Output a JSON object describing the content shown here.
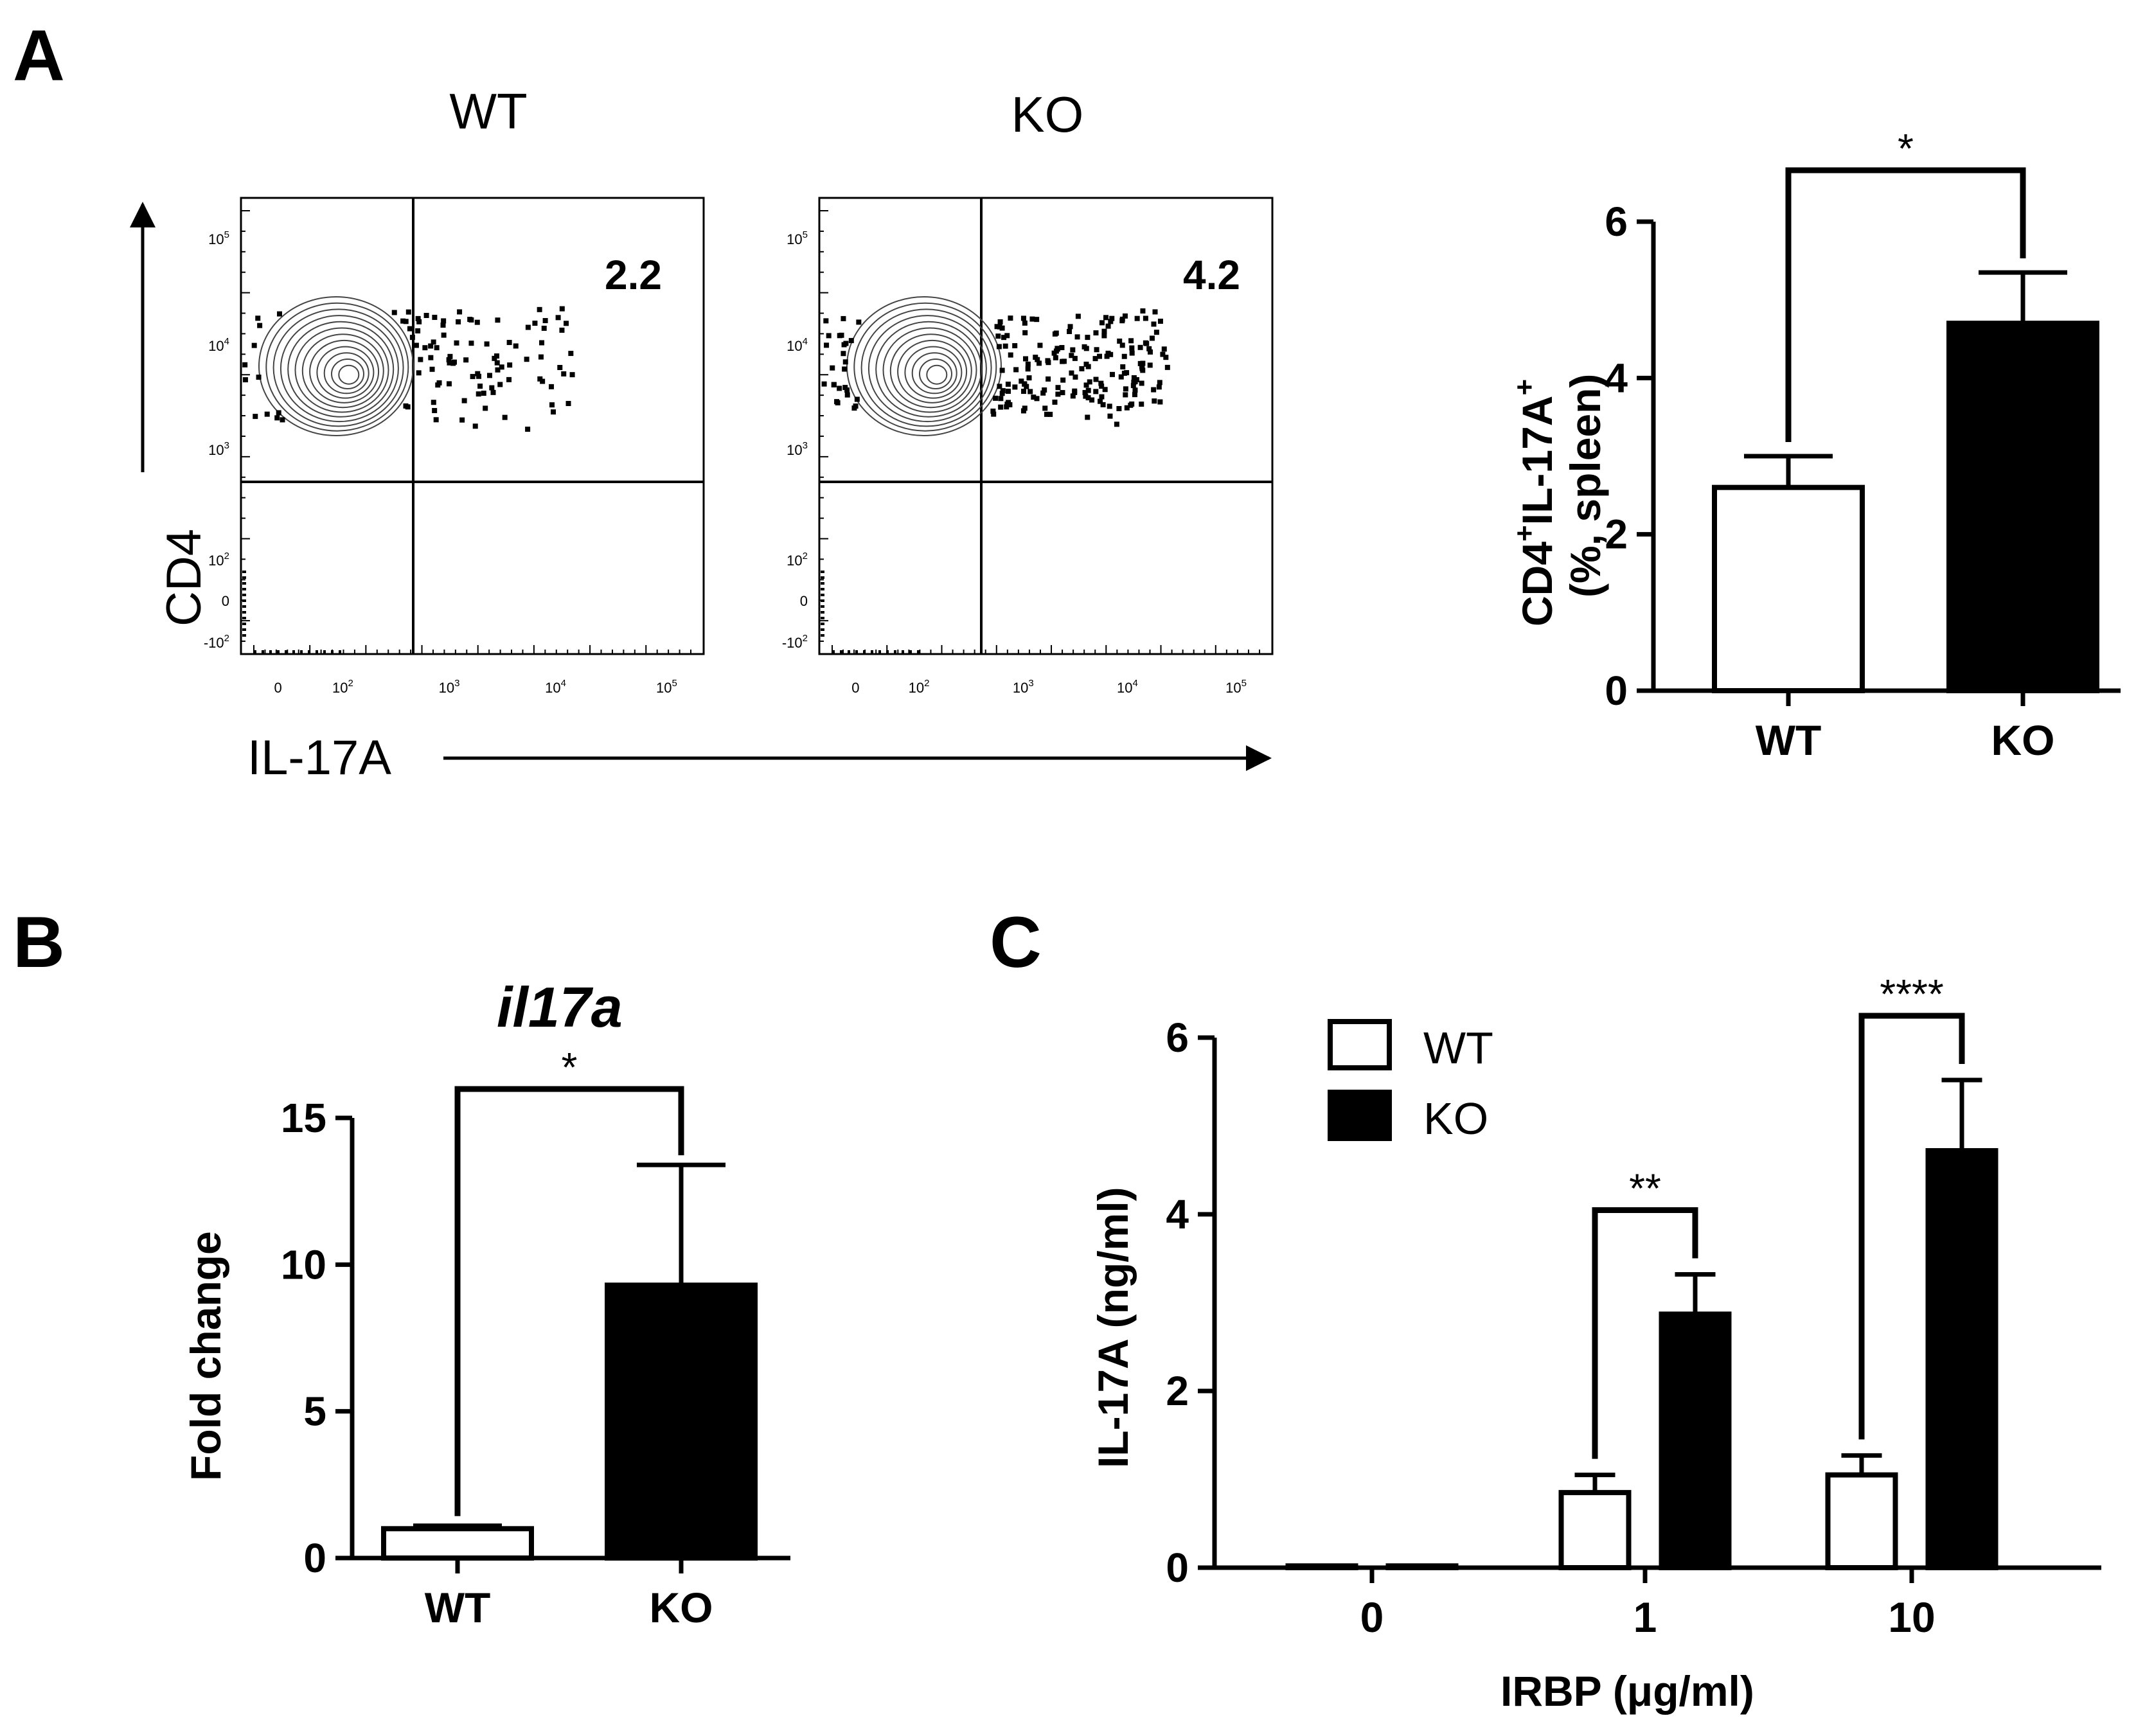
{
  "panel_labels": {
    "a": "A",
    "b": "B",
    "c": "C"
  },
  "colors": {
    "wt_fill": "#ffffff",
    "ko_fill": "#000000",
    "axis": "#000000"
  },
  "chart_data": [
    {
      "id": "A-flow",
      "type": "scatter",
      "description_kind": "flow cytometry contour plots",
      "panels": [
        {
          "title": "WT",
          "quadrant_percent": "2.2"
        },
        {
          "title": "KO",
          "quadrant_percent": "4.2"
        }
      ],
      "xlabel": "IL-17A",
      "ylabel": "CD4",
      "x_ticks": [
        {
          "base": "0",
          "exp": ""
        },
        {
          "base": "10",
          "exp": "2"
        },
        {
          "base": "10",
          "exp": "3"
        },
        {
          "base": "10",
          "exp": "4"
        },
        {
          "base": "10",
          "exp": "5"
        }
      ],
      "y_ticks": [
        {
          "base": "10",
          "exp": "5"
        },
        {
          "base": "10",
          "exp": "4"
        },
        {
          "base": "10",
          "exp": "3"
        },
        {
          "base": "10",
          "exp": "2"
        },
        {
          "base": "0",
          "exp": ""
        },
        {
          "base": "-10",
          "exp": "2"
        }
      ]
    },
    {
      "id": "A-bar",
      "type": "bar",
      "categories": [
        "WT",
        "KO"
      ],
      "values": [
        2.6,
        4.7
      ],
      "errors": [
        0.4,
        0.65
      ],
      "ylabel_line1": "CD4",
      "ylabel_sup1": "+",
      "ylabel_mid": "IL-17A",
      "ylabel_sup2": "+",
      "ylabel_line2": "(%, spleen)",
      "ylim": [
        0,
        6
      ],
      "yticks": [
        "0",
        "2",
        "4",
        "6"
      ],
      "significance": "*"
    },
    {
      "id": "B",
      "type": "bar",
      "title": "il17a",
      "categories": [
        "WT",
        "KO"
      ],
      "values": [
        1.0,
        9.3
      ],
      "errors": [
        0.1,
        4.1
      ],
      "ylabel": "Fold change",
      "ylim": [
        0,
        15
      ],
      "yticks": [
        "0",
        "5",
        "10",
        "15"
      ],
      "significance": "*"
    },
    {
      "id": "C",
      "type": "bar",
      "categories": [
        "0",
        "1",
        "10"
      ],
      "series": [
        {
          "name": "WT",
          "values": [
            0.02,
            0.85,
            1.05
          ],
          "errors": [
            0,
            0.2,
            0.22
          ]
        },
        {
          "name": "KO",
          "values": [
            0.02,
            2.87,
            4.72
          ],
          "errors": [
            0,
            0.45,
            0.8
          ]
        }
      ],
      "xlabel": "IRBP (μg/ml)",
      "ylabel": "IL-17A (ng/ml)",
      "ylim": [
        0,
        6
      ],
      "yticks": [
        "0",
        "2",
        "4",
        "6"
      ],
      "significance": [
        "",
        "**",
        "****"
      ],
      "legend_position": "top-left"
    }
  ]
}
